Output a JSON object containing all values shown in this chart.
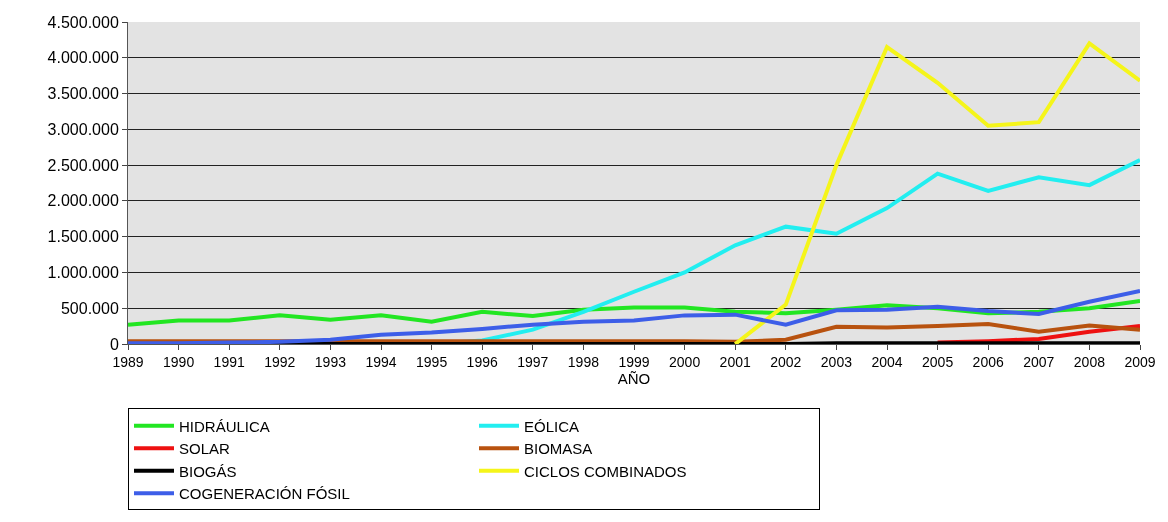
{
  "chart_data": {
    "type": "line",
    "xlabel": "AÑO",
    "categories": [
      "1989",
      "1990",
      "1991",
      "1992",
      "1993",
      "1994",
      "1995",
      "1996",
      "1997",
      "1998",
      "1999",
      "2000",
      "2001",
      "2002",
      "2003",
      "2004",
      "2005",
      "2006",
      "2007",
      "2008",
      "2009"
    ],
    "ylim": [
      0,
      4500000
    ],
    "yticks": [
      {
        "value": 0,
        "label": "0"
      },
      {
        "value": 500000,
        "label": "500.000"
      },
      {
        "value": 1000000,
        "label": "1.000.000"
      },
      {
        "value": 1500000,
        "label": "1.500.000"
      },
      {
        "value": 2000000,
        "label": "2.000.000"
      },
      {
        "value": 2500000,
        "label": "2.500.000"
      },
      {
        "value": 3000000,
        "label": "3.000.000"
      },
      {
        "value": 3500000,
        "label": "3.500.000"
      },
      {
        "value": 4000000,
        "label": "4.000.000"
      },
      {
        "value": 4500000,
        "label": "4.500.000"
      }
    ],
    "grid": "y",
    "legend": "bottom",
    "marker": "none",
    "line_style": "solid",
    "series": [
      {
        "name": "HIDRÁULICA",
        "color": "#22e622",
        "values": [
          270000,
          330000,
          330000,
          400000,
          340000,
          400000,
          310000,
          450000,
          390000,
          480000,
          510000,
          510000,
          450000,
          430000,
          480000,
          540000,
          500000,
          430000,
          450000,
          500000,
          600000
        ]
      },
      {
        "name": "EÓLICA",
        "color": "#22eef0",
        "values": [
          null,
          null,
          null,
          null,
          null,
          null,
          0,
          50000,
          200000,
          450000,
          730000,
          1000000,
          1380000,
          1640000,
          1540000,
          1900000,
          2380000,
          2140000,
          2330000,
          2220000,
          2570000
        ]
      },
      {
        "name": "SOLAR",
        "color": "#ee1111",
        "values": [
          null,
          null,
          null,
          null,
          null,
          null,
          null,
          null,
          null,
          null,
          null,
          null,
          null,
          null,
          null,
          null,
          20000,
          40000,
          70000,
          170000,
          250000
        ]
      },
      {
        "name": "BIOMASA",
        "color": "#b8520f",
        "values": [
          40000,
          40000,
          40000,
          40000,
          40000,
          40000,
          40000,
          40000,
          40000,
          40000,
          40000,
          40000,
          30000,
          60000,
          240000,
          230000,
          250000,
          280000,
          170000,
          260000,
          200000
        ]
      },
      {
        "name": "BIOGÁS",
        "color": "#000000",
        "values": [
          0,
          0,
          0,
          0,
          0,
          0,
          0,
          0,
          0,
          0,
          0,
          0,
          0,
          0,
          10000,
          10000,
          10000,
          10000,
          10000,
          10000,
          10000
        ]
      },
      {
        "name": "CICLOS COMBINADOS",
        "color": "#f5f51a",
        "values": [
          null,
          null,
          null,
          null,
          null,
          null,
          null,
          null,
          null,
          null,
          null,
          null,
          0,
          550000,
          2500000,
          4150000,
          3650000,
          3050000,
          3100000,
          4200000,
          3680000
        ]
      },
      {
        "name": "COGENERACIÓN FÓSIL",
        "color": "#3d5ee8",
        "values": [
          10000,
          10000,
          20000,
          30000,
          60000,
          130000,
          160000,
          210000,
          270000,
          310000,
          330000,
          400000,
          410000,
          270000,
          470000,
          480000,
          520000,
          460000,
          420000,
          590000,
          740000
        ]
      }
    ]
  }
}
